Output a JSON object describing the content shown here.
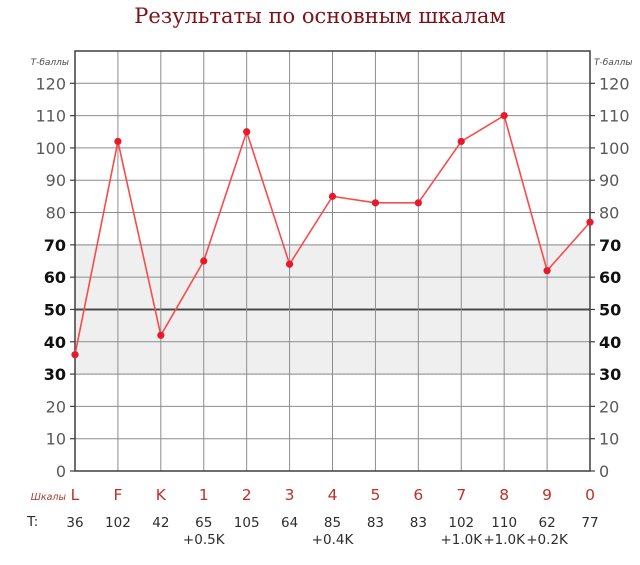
{
  "page_title": "Результаты по основным шкалам",
  "axis_titles": {
    "left": "Т-баллы",
    "right": "Т-баллы"
  },
  "row_labels": {
    "scales": "Шкалы",
    "t": "T:"
  },
  "chart_data": {
    "type": "line",
    "title": "Результаты по основным шкалам",
    "categories": [
      "L",
      "F",
      "K",
      "1",
      "2",
      "3",
      "4",
      "5",
      "6",
      "7",
      "8",
      "9",
      "0"
    ],
    "values": [
      36,
      102,
      42,
      65,
      105,
      64,
      85,
      83,
      83,
      102,
      110,
      62,
      77
    ],
    "corrections": [
      "",
      "",
      "",
      "+0.5K",
      "",
      "",
      "+0.4K",
      "",
      "",
      "+1.0K",
      "+1.0K",
      "+0.2K",
      ""
    ],
    "xlabel": "Шкалы",
    "ylabel": "Т-баллы",
    "ylim": [
      0,
      130
    ],
    "ytick_step": 10,
    "ytick_max_labeled": 120,
    "bold_tick_range": [
      30,
      70
    ],
    "normal_band": [
      30,
      70
    ],
    "emphasized_gridline": 50,
    "grid": true,
    "legend": "none"
  },
  "style": {
    "title_color": "#7d1119",
    "scale_label_color": "#bf2f28",
    "caption_color": "#a93b31",
    "value_color": "#2d2d2d",
    "tick_gray": "#595959",
    "tick_black": "#111111",
    "line_color": "#fa4b4b",
    "marker_color": "#e8192c",
    "band_fill": "#f0efef",
    "band_edge": "#b4b4b4",
    "grid_color": "#8d8d8d",
    "axis_color": "#3f3f3f",
    "emphasis_line_color": "#4b4b4b",
    "axis_title_color": "#4a4a4a"
  }
}
